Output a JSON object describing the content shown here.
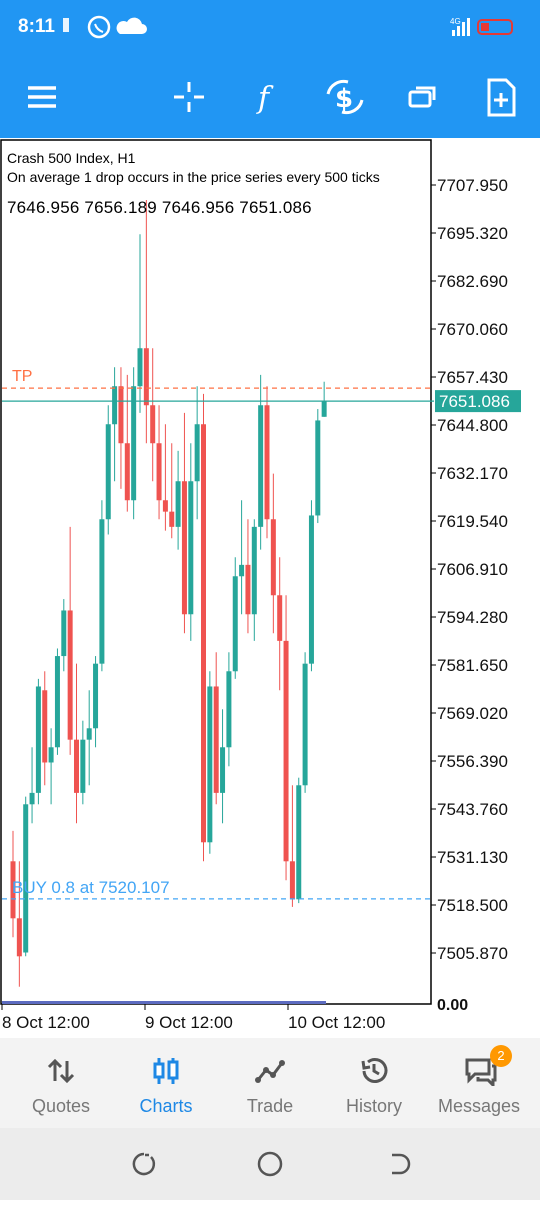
{
  "status_bar": {
    "time": "8:11",
    "network": "4G"
  },
  "toolbar": {
    "icons": [
      "menu-icon",
      "crosshair-icon",
      "indicators-icon",
      "new-order-icon",
      "windows-icon",
      "templates-icon"
    ]
  },
  "chart": {
    "symbol_line": "Crash 500 Index, H1",
    "description": "On average 1 drop occurs in the price series every 500 ticks",
    "ohlc": "7646.956 7656.189 7646.956 7651.086",
    "tp_label": "TP",
    "buy_label": "BUY 0.8 at 7520.107",
    "current_price": "7651.086",
    "price_ticks": [
      "7707.950",
      "7695.320",
      "7682.690",
      "7670.060",
      "7657.430",
      "7644.800",
      "7632.170",
      "7619.540",
      "7606.910",
      "7594.280",
      "7581.650",
      "7569.020",
      "7556.390",
      "7543.760",
      "7531.130",
      "7518.500",
      "7505.870"
    ],
    "bottom_tick": "0.00",
    "time_labels": [
      "8 Oct 12:00",
      "9 Oct 12:00",
      "10 Oct 12:00"
    ],
    "colors": {
      "bull": "#26a69a",
      "bear": "#ef5350",
      "tp": "#ff7043",
      "buy": "#42a5f5"
    }
  },
  "chart_data": {
    "type": "candlestick",
    "title": "Crash 500 Index, H1",
    "ylim": [
      7498,
      7713
    ],
    "candles": [
      {
        "o": 7530,
        "h": 7538,
        "l": 7510,
        "c": 7515
      },
      {
        "o": 7515,
        "h": 7530,
        "l": 7497,
        "c": 7505
      },
      {
        "o": 7506,
        "h": 7547,
        "l": 7505,
        "c": 7545
      },
      {
        "o": 7545,
        "h": 7560,
        "l": 7540,
        "c": 7548
      },
      {
        "o": 7548,
        "h": 7578,
        "l": 7545,
        "c": 7576
      },
      {
        "o": 7575,
        "h": 7580,
        "l": 7550,
        "c": 7556
      },
      {
        "o": 7556,
        "h": 7565,
        "l": 7545,
        "c": 7560
      },
      {
        "o": 7560,
        "h": 7586,
        "l": 7558,
        "c": 7584
      },
      {
        "o": 7584,
        "h": 7599,
        "l": 7580,
        "c": 7596
      },
      {
        "o": 7596,
        "h": 7618,
        "l": 7558,
        "c": 7562
      },
      {
        "o": 7562,
        "h": 7582,
        "l": 7540,
        "c": 7548
      },
      {
        "o": 7548,
        "h": 7567,
        "l": 7545,
        "c": 7562
      },
      {
        "o": 7562,
        "h": 7575,
        "l": 7550,
        "c": 7565
      },
      {
        "o": 7565,
        "h": 7584,
        "l": 7560,
        "c": 7582
      },
      {
        "o": 7582,
        "h": 7625,
        "l": 7580,
        "c": 7620
      },
      {
        "o": 7620,
        "h": 7650,
        "l": 7616,
        "c": 7645
      },
      {
        "o": 7645,
        "h": 7660,
        "l": 7630,
        "c": 7655
      },
      {
        "o": 7655,
        "h": 7660,
        "l": 7628,
        "c": 7640
      },
      {
        "o": 7640,
        "h": 7658,
        "l": 7622,
        "c": 7625
      },
      {
        "o": 7625,
        "h": 7660,
        "l": 7620,
        "c": 7655
      },
      {
        "o": 7655,
        "h": 7695,
        "l": 7648,
        "c": 7665
      },
      {
        "o": 7665,
        "h": 7704,
        "l": 7640,
        "c": 7650
      },
      {
        "o": 7650,
        "h": 7665,
        "l": 7630,
        "c": 7640
      },
      {
        "o": 7640,
        "h": 7650,
        "l": 7620,
        "c": 7625
      },
      {
        "o": 7625,
        "h": 7645,
        "l": 7617,
        "c": 7622
      },
      {
        "o": 7622,
        "h": 7640,
        "l": 7615,
        "c": 7618
      },
      {
        "o": 7618,
        "h": 7638,
        "l": 7612,
        "c": 7630
      },
      {
        "o": 7630,
        "h": 7648,
        "l": 7590,
        "c": 7595
      },
      {
        "o": 7595,
        "h": 7640,
        "l": 7588,
        "c": 7630
      },
      {
        "o": 7630,
        "h": 7655,
        "l": 7620,
        "c": 7645
      },
      {
        "o": 7645,
        "h": 7653,
        "l": 7530,
        "c": 7535
      },
      {
        "o": 7535,
        "h": 7580,
        "l": 7532,
        "c": 7576
      },
      {
        "o": 7576,
        "h": 7585,
        "l": 7545,
        "c": 7548
      },
      {
        "o": 7548,
        "h": 7570,
        "l": 7540,
        "c": 7560
      },
      {
        "o": 7560,
        "h": 7585,
        "l": 7555,
        "c": 7580
      },
      {
        "o": 7580,
        "h": 7610,
        "l": 7578,
        "c": 7605
      },
      {
        "o": 7605,
        "h": 7625,
        "l": 7595,
        "c": 7608
      },
      {
        "o": 7608,
        "h": 7620,
        "l": 7590,
        "c": 7595
      },
      {
        "o": 7595,
        "h": 7620,
        "l": 7588,
        "c": 7618
      },
      {
        "o": 7618,
        "h": 7658,
        "l": 7612,
        "c": 7650
      },
      {
        "o": 7650,
        "h": 7655,
        "l": 7615,
        "c": 7620
      },
      {
        "o": 7620,
        "h": 7632,
        "l": 7590,
        "c": 7600
      },
      {
        "o": 7600,
        "h": 7610,
        "l": 7575,
        "c": 7588
      },
      {
        "o": 7588,
        "h": 7600,
        "l": 7525,
        "c": 7530
      },
      {
        "o": 7530,
        "h": 7550,
        "l": 7518,
        "c": 7520
      },
      {
        "o": 7520,
        "h": 7552,
        "l": 7519,
        "c": 7550
      },
      {
        "o": 7550,
        "h": 7585,
        "l": 7548,
        "c": 7582
      },
      {
        "o": 7582,
        "h": 7625,
        "l": 7580,
        "c": 7621
      },
      {
        "o": 7621,
        "h": 7649,
        "l": 7619,
        "c": 7646
      },
      {
        "o": 7646.956,
        "h": 7656.189,
        "l": 7646.956,
        "c": 7651.086
      }
    ],
    "tp_level": 7654.5,
    "buy_level": 7520.107
  },
  "bottom_nav": {
    "items": [
      {
        "label": "Quotes",
        "icon": "arrows-updown-icon"
      },
      {
        "label": "Charts",
        "icon": "candles-icon"
      },
      {
        "label": "Trade",
        "icon": "trend-icon"
      },
      {
        "label": "History",
        "icon": "history-icon"
      },
      {
        "label": "Messages",
        "icon": "chat-icon"
      }
    ],
    "active": "Charts",
    "messages_badge": "2"
  },
  "system_nav": {
    "icons": [
      "recents-icon",
      "home-icon",
      "back-icon"
    ]
  }
}
